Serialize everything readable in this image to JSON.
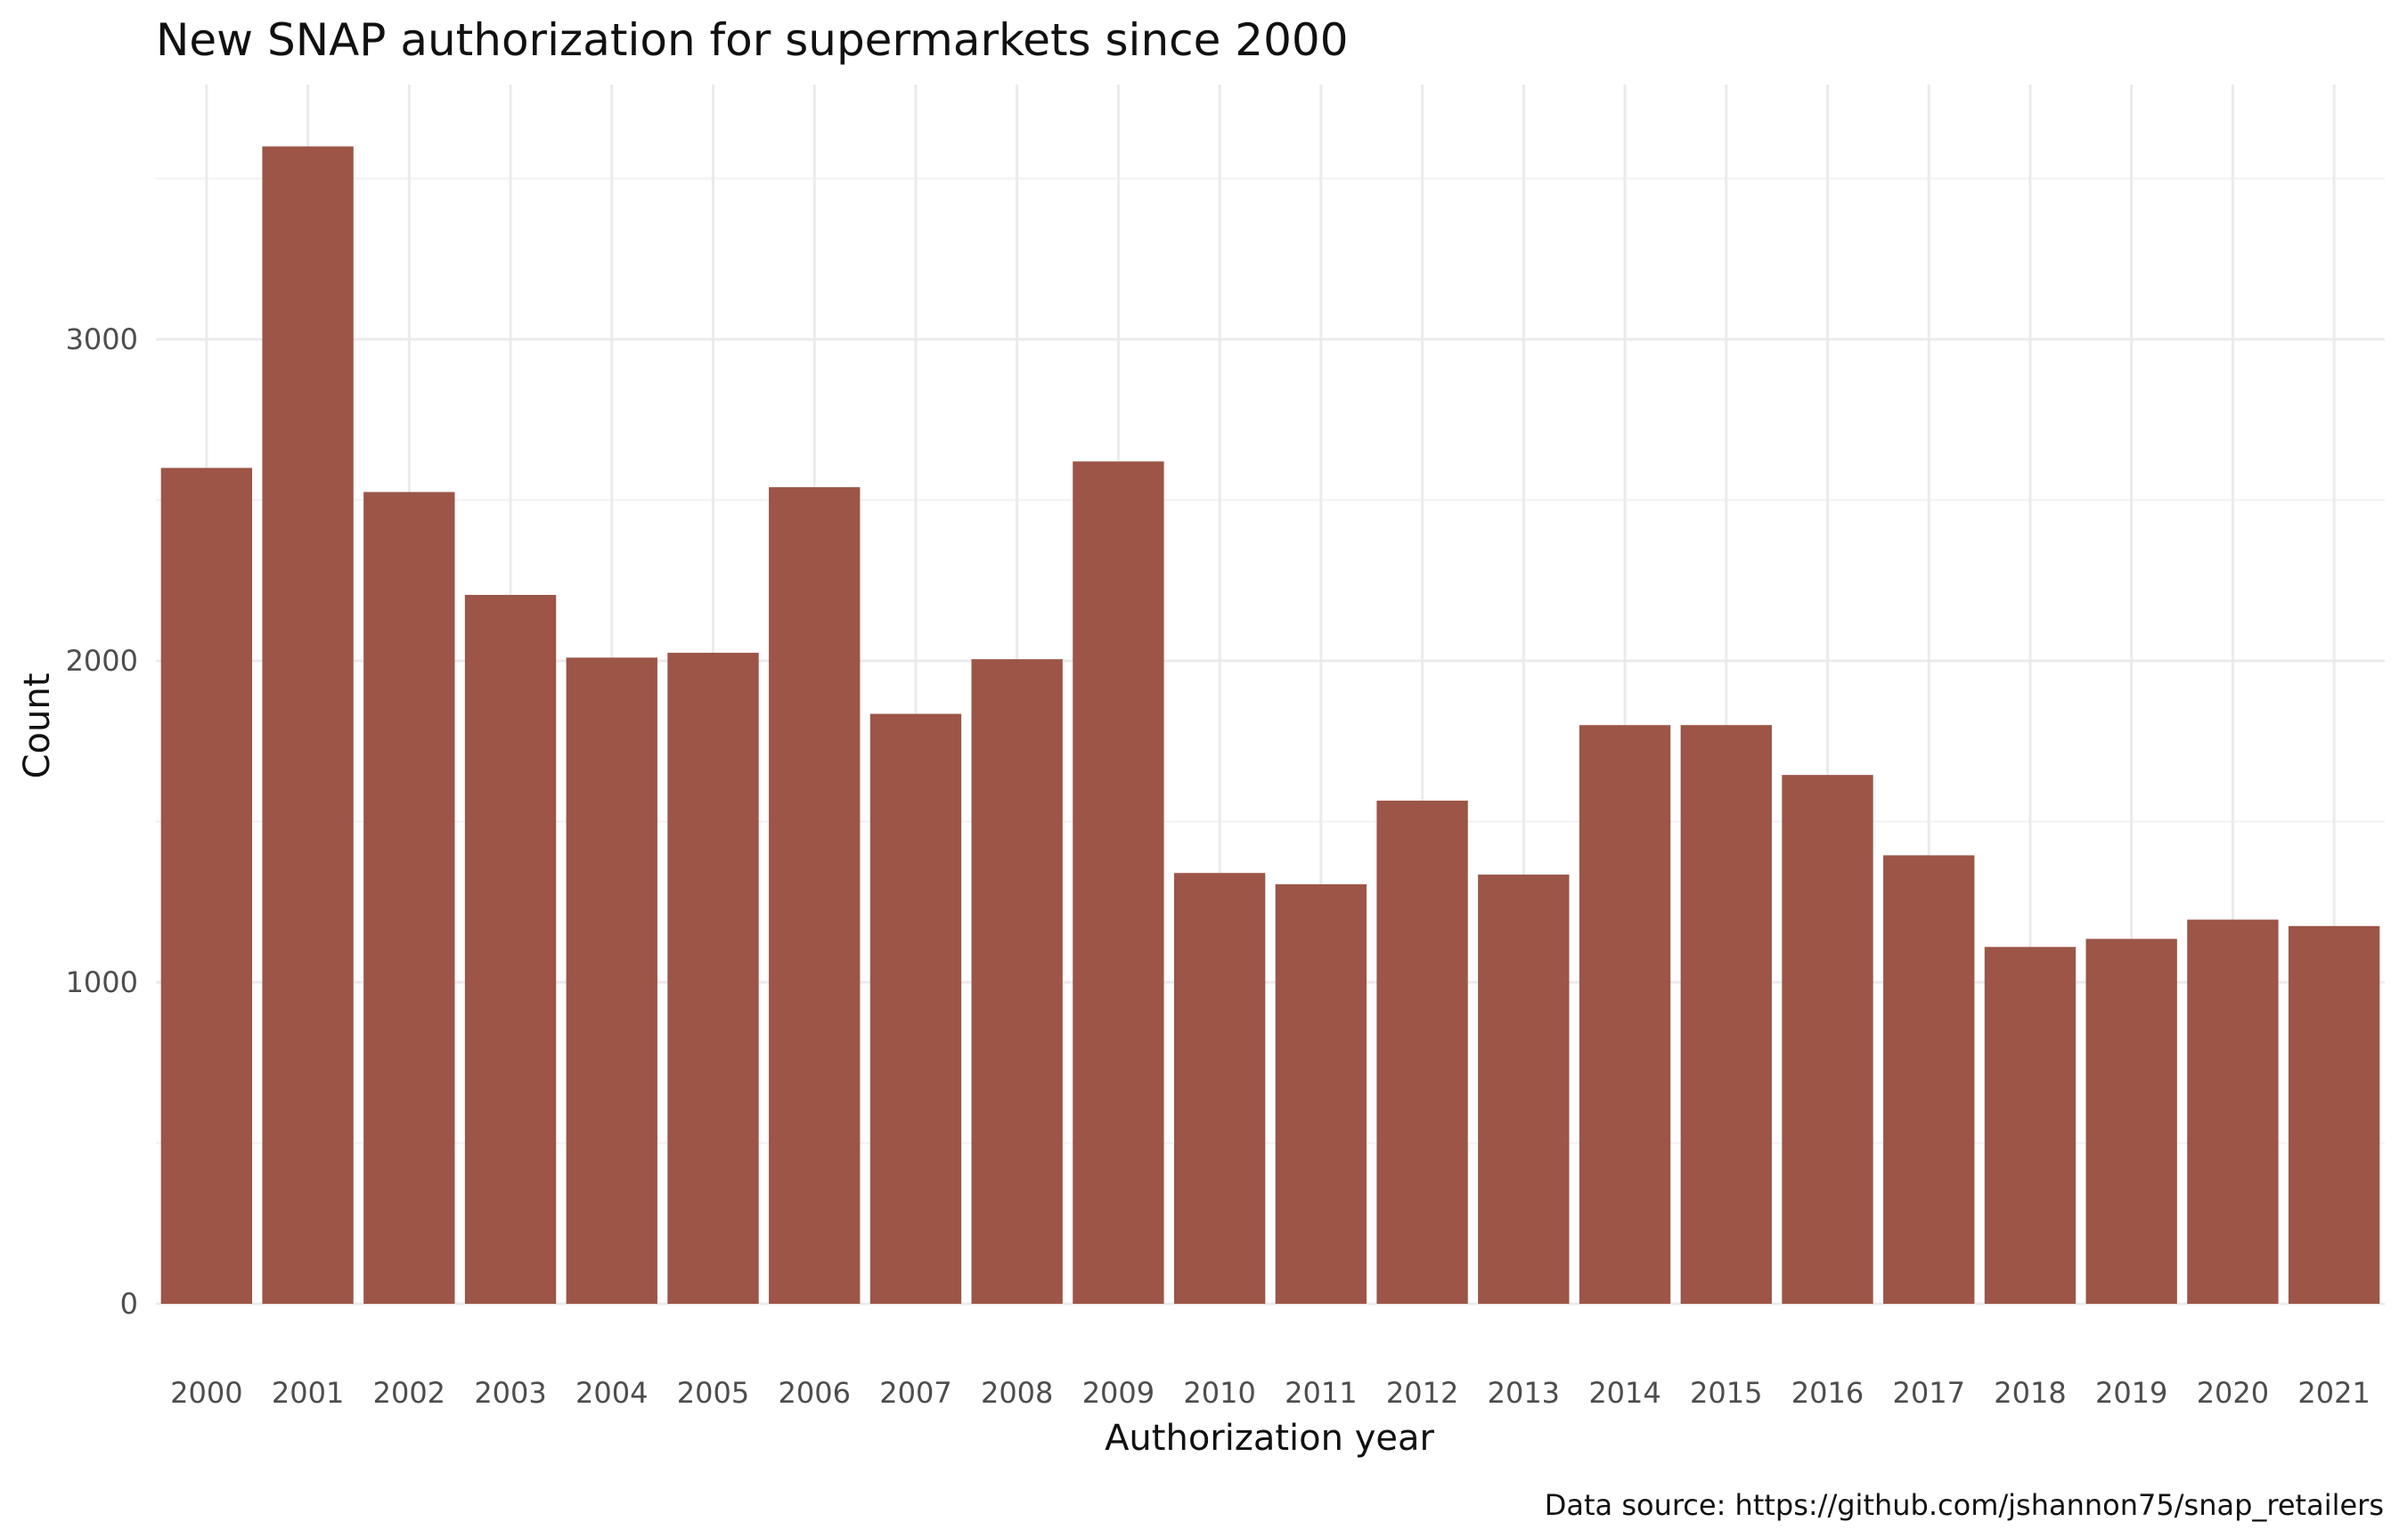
{
  "chart_data": {
    "type": "bar",
    "title": "New SNAP authorization for supermarkets since 2000",
    "xlabel": "Authorization year",
    "ylabel": "Count",
    "caption": "Data source: https://github.com/jshannon75/snap_retailers",
    "categories": [
      "2000",
      "2001",
      "2002",
      "2003",
      "2004",
      "2005",
      "2006",
      "2007",
      "2008",
      "2009",
      "2010",
      "2011",
      "2012",
      "2013",
      "2014",
      "2015",
      "2016",
      "2017",
      "2018",
      "2019",
      "2020",
      "2021"
    ],
    "values": [
      2600,
      3600,
      2525,
      2205,
      2010,
      2025,
      2540,
      1835,
      2005,
      2620,
      1340,
      1305,
      1565,
      1335,
      1800,
      1800,
      1645,
      1395,
      1110,
      1135,
      1195,
      1175
    ],
    "yticks": [
      0,
      1000,
      2000,
      3000
    ],
    "ylim": [
      0,
      3790
    ],
    "grid": true,
    "bar_color": "#9c5547"
  }
}
